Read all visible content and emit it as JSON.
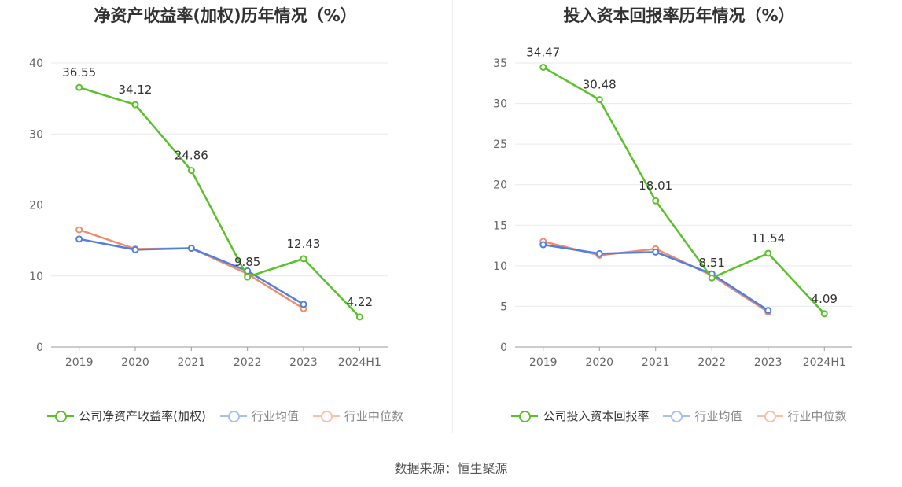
{
  "source_text": "数据来源：恒生聚源",
  "colors": {
    "company": "#5ac129",
    "industry_avg": "#4f7fe0",
    "industry_median": "#f28b6b",
    "grid": "#e6e9ef",
    "axis": "#999999"
  },
  "chart_data": [
    {
      "type": "line",
      "title": "净资产收益率(加权)历年情况（%）",
      "categories": [
        "2019",
        "2020",
        "2021",
        "2022",
        "2023",
        "2024H1"
      ],
      "ylim": [
        0,
        40
      ],
      "yticks": [
        0,
        10,
        20,
        30,
        40
      ],
      "grid": true,
      "legend_position": "bottom",
      "series": [
        {
          "key": "company",
          "name": "公司净资产收益率(加权)",
          "values": [
            36.55,
            34.12,
            24.86,
            9.85,
            12.43,
            4.22
          ],
          "labels": [
            "36.55",
            "34.12",
            "24.86",
            "9.85",
            "12.43",
            "4.22"
          ]
        },
        {
          "key": "industry_avg",
          "name": "行业均值",
          "values": [
            15.2,
            13.7,
            13.9,
            10.7,
            6.0,
            null
          ]
        },
        {
          "key": "industry_median",
          "name": "行业中位数",
          "values": [
            16.5,
            13.8,
            13.9,
            10.3,
            5.4,
            null
          ]
        }
      ]
    },
    {
      "type": "line",
      "title": "投入资本回报率历年情况（%）",
      "categories": [
        "2019",
        "2020",
        "2021",
        "2022",
        "2023",
        "2024H1"
      ],
      "ylim": [
        0,
        35
      ],
      "yticks": [
        0,
        5,
        10,
        15,
        20,
        25,
        30,
        35
      ],
      "grid": true,
      "legend_position": "bottom",
      "series": [
        {
          "key": "company",
          "name": "公司投入资本回报率",
          "values": [
            34.47,
            30.48,
            18.01,
            8.51,
            11.54,
            4.09
          ],
          "labels": [
            "34.47",
            "30.48",
            "18.01",
            "8.51",
            "11.54",
            "4.09"
          ]
        },
        {
          "key": "industry_avg",
          "name": "行业均值",
          "values": [
            12.6,
            11.5,
            11.7,
            9.0,
            4.5,
            null
          ]
        },
        {
          "key": "industry_median",
          "name": "行业中位数",
          "values": [
            13.0,
            11.3,
            12.1,
            8.8,
            4.3,
            null
          ]
        }
      ]
    }
  ]
}
